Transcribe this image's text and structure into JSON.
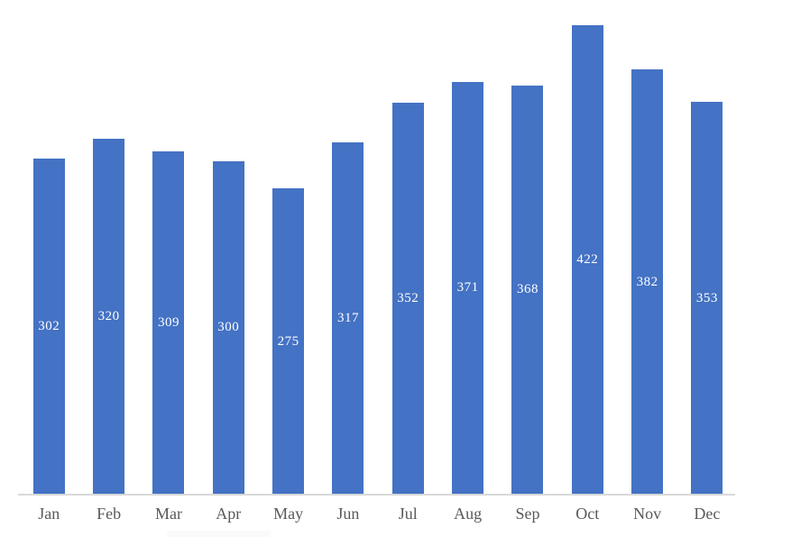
{
  "chart_data": {
    "type": "bar",
    "categories": [
      "Jan",
      "Feb",
      "Mar",
      "Apr",
      "May",
      "Jun",
      "Jul",
      "Aug",
      "Sep",
      "Oct",
      "Nov",
      "Dec"
    ],
    "values": [
      302,
      320,
      309,
      300,
      275,
      317,
      352,
      371,
      368,
      422,
      382,
      353
    ],
    "title": "",
    "xlabel": "",
    "ylabel": "",
    "ylim": [
      0,
      445
    ],
    "grid": false,
    "legend": "none",
    "data_label_position": "inside-center",
    "bar_color": "#4472C4",
    "value_label_color": "#FFFFFF",
    "axis_line_color": "#D9D9D9",
    "tick_label_color": "#595959"
  }
}
